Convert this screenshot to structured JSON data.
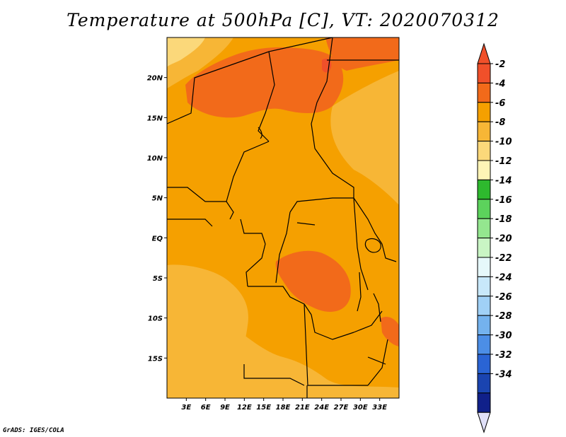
{
  "title": "Temperature at 500hPa [C], VT: 2020070312",
  "footer": "GrADS: IGES/COLA",
  "map": {
    "lon_range": [
      0,
      36
    ],
    "lat_range": [
      -20,
      25
    ],
    "lat_ticks": [
      {
        "value": 20,
        "label": "20N"
      },
      {
        "value": 15,
        "label": "15N"
      },
      {
        "value": 10,
        "label": "10N"
      },
      {
        "value": 5,
        "label": "5N"
      },
      {
        "value": 0,
        "label": "EQ"
      },
      {
        "value": -5,
        "label": "5S"
      },
      {
        "value": -10,
        "label": "10S"
      },
      {
        "value": -15,
        "label": "15S"
      }
    ],
    "lon_ticks": [
      {
        "value": 3,
        "label": "3E"
      },
      {
        "value": 6,
        "label": "6E"
      },
      {
        "value": 9,
        "label": "9E"
      },
      {
        "value": 12,
        "label": "12E"
      },
      {
        "value": 15,
        "label": "15E"
      },
      {
        "value": 18,
        "label": "18E"
      },
      {
        "value": 21,
        "label": "21E"
      },
      {
        "value": 24,
        "label": "24E"
      },
      {
        "value": 27,
        "label": "27E"
      },
      {
        "value": 30,
        "label": "30E"
      },
      {
        "value": 33,
        "label": "33E"
      }
    ]
  },
  "colorbar": {
    "labels": [
      "-2",
      "-4",
      "-6",
      "-8",
      "-10",
      "-12",
      "-14",
      "-16",
      "-18",
      "-20",
      "-22",
      "-24",
      "-26",
      "-28",
      "-30",
      "-32",
      "-34"
    ],
    "colors": [
      "#f0502a",
      "#f26a1a",
      "#f5a000",
      "#f7b636",
      "#fbd87a",
      "#fef4b6",
      "#2eb92e",
      "#5cd25c",
      "#94e68f",
      "#c9f5c4",
      "#e6f8fa",
      "#c8e8fa",
      "#a0d0f6",
      "#74b2ee",
      "#4c8ee6",
      "#2a64d4",
      "#1a44b0",
      "#10208a"
    ],
    "top_tip_color": "#f0502a",
    "bottom_tip_color": "#e0e0f8"
  }
}
